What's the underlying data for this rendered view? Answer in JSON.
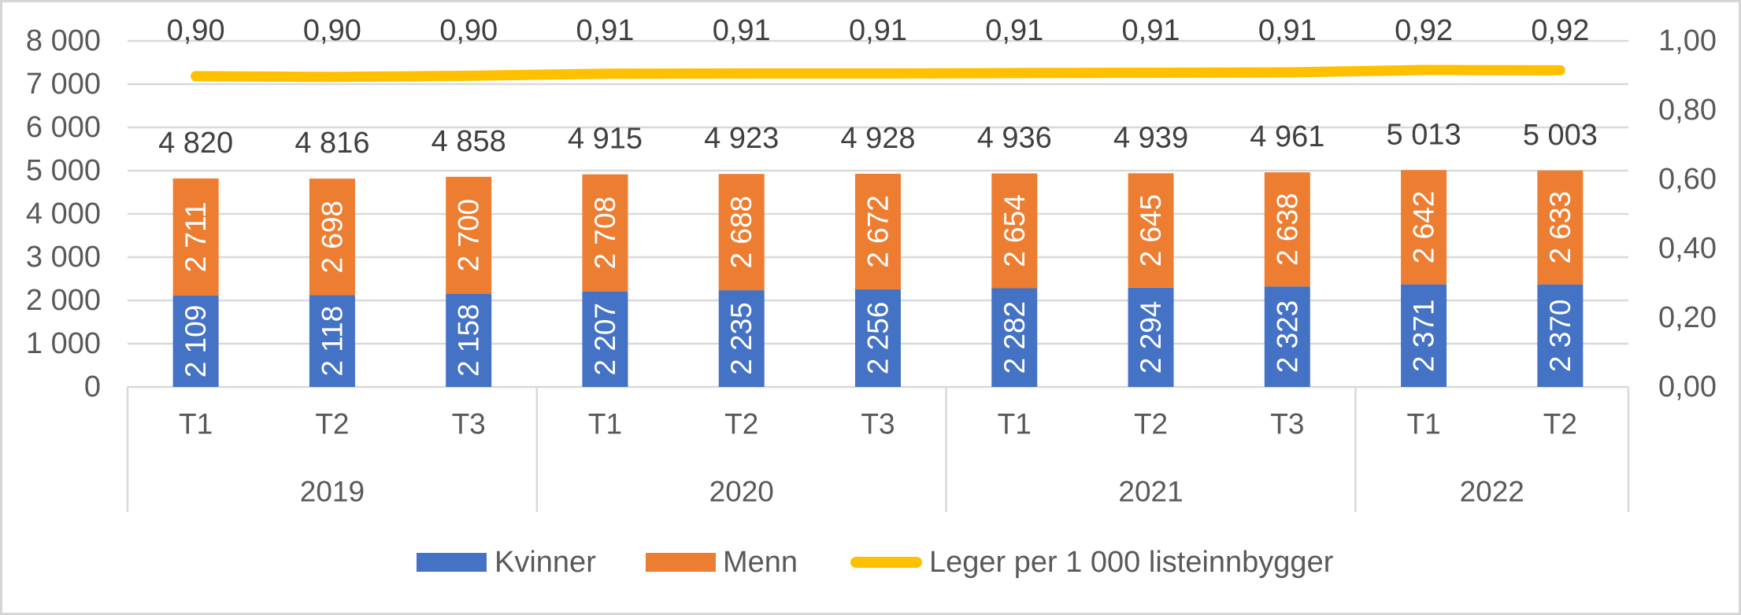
{
  "chart_data": {
    "type": "combo-stacked-bar-line",
    "title": "",
    "groups": [
      {
        "year": "2019",
        "tertials": [
          "T1",
          "T2",
          "T3"
        ]
      },
      {
        "year": "2020",
        "tertials": [
          "T1",
          "T2",
          "T3"
        ]
      },
      {
        "year": "2021",
        "tertials": [
          "T1",
          "T2",
          "T3"
        ]
      },
      {
        "year": "2022",
        "tertials": [
          "T1",
          "T2"
        ]
      }
    ],
    "categories": [
      "T1 2019",
      "T2 2019",
      "T3 2019",
      "T1 2020",
      "T2 2020",
      "T3 2020",
      "T1 2021",
      "T2 2021",
      "T3 2021",
      "T1 2022",
      "T2 2022"
    ],
    "series": [
      {
        "name": "Kvinner",
        "type": "bar",
        "color": "#4472C4",
        "axis": "primary",
        "values": [
          2109,
          2118,
          2158,
          2207,
          2235,
          2256,
          2282,
          2294,
          2323,
          2371,
          2370
        ],
        "labels": [
          "2 109",
          "2 118",
          "2 158",
          "2 207",
          "2 235",
          "2 256",
          "2 282",
          "2 294",
          "2 323",
          "2 371",
          "2 370"
        ]
      },
      {
        "name": "Menn",
        "type": "bar",
        "color": "#ED7D31",
        "axis": "primary",
        "values": [
          2711,
          2698,
          2700,
          2708,
          2688,
          2672,
          2654,
          2645,
          2638,
          2642,
          2633
        ],
        "labels": [
          "2 711",
          "2 698",
          "2 700",
          "2 708",
          "2 688",
          "2 672",
          "2 654",
          "2 645",
          "2 638",
          "2 642",
          "2 633"
        ]
      },
      {
        "name": "Leger per 1 000 listeinnbygger",
        "type": "line",
        "color": "#FFC000",
        "axis": "secondary",
        "values": [
          0.9,
          0.9,
          0.9,
          0.91,
          0.91,
          0.91,
          0.91,
          0.91,
          0.91,
          0.92,
          0.92
        ],
        "values_plotted_estimate": [
          0.898,
          0.896,
          0.899,
          0.905,
          0.906,
          0.906,
          0.907,
          0.908,
          0.909,
          0.916,
          0.915
        ],
        "labels": [
          "0,90",
          "0,90",
          "0,90",
          "0,91",
          "0,91",
          "0,91",
          "0,91",
          "0,91",
          "0,91",
          "0,92",
          "0,92"
        ]
      }
    ],
    "totals": [
      4820,
      4816,
      4858,
      4915,
      4923,
      4928,
      4936,
      4939,
      4961,
      5013,
      5003
    ],
    "totals_labels": [
      "4 820",
      "4 816",
      "4 858",
      "4 915",
      "4 923",
      "4 928",
      "4 936",
      "4 939",
      "4 961",
      "5 013",
      "5 003"
    ],
    "left_axis": {
      "min": 0,
      "max": 8000,
      "step": 1000,
      "ticks": [
        "8 000",
        "7 000",
        "6 000",
        "5 000",
        "4 000",
        "3 000",
        "2 000",
        "1 000",
        "0"
      ]
    },
    "right_axis": {
      "min": 0.0,
      "max": 1.0,
      "step": 0.2,
      "ticks": [
        "1,00",
        "0,80",
        "0,60",
        "0,40",
        "0,20",
        "0,00"
      ]
    },
    "legend": [
      {
        "label": "Kvinner",
        "swatch": "rect",
        "color": "#4472C4"
      },
      {
        "label": "Menn",
        "swatch": "rect",
        "color": "#ED7D31"
      },
      {
        "label": "Leger per 1 000 listeinnbygger",
        "swatch": "line",
        "color": "#FFC000"
      }
    ],
    "grid": true,
    "legend_position": "bottom",
    "colors": {
      "gridline": "#D9D9D9",
      "axis_line": "#D9D9D9",
      "axis_text": "#595959",
      "data_label_text": "#404040",
      "bar_label_text": "#FFFFFF",
      "frame_border": "#D6D6D6"
    }
  }
}
